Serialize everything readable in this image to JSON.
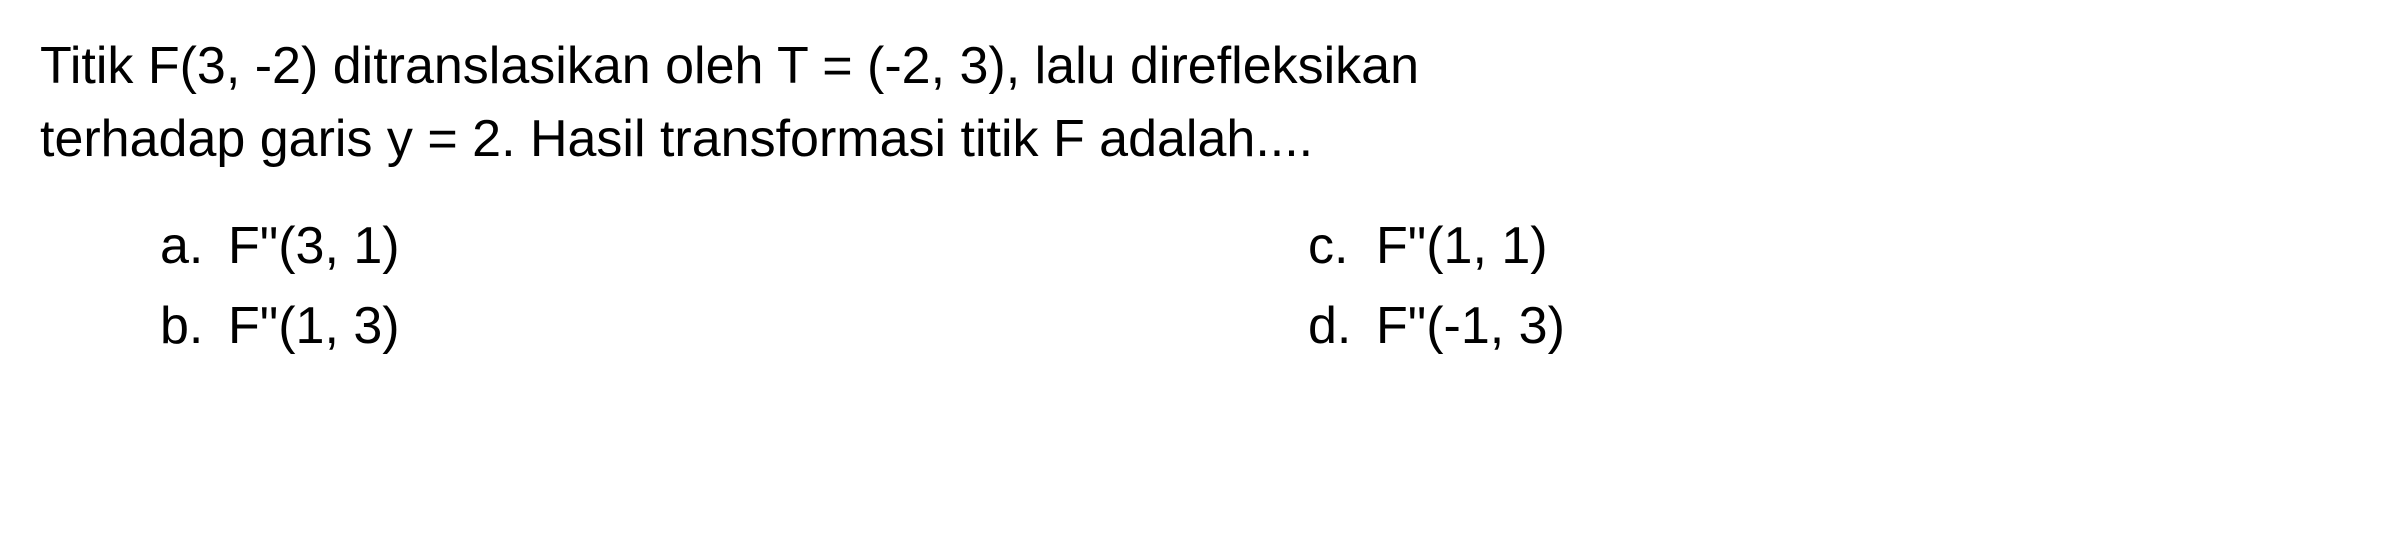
{
  "question": {
    "line1": "Titik F(3, -2) ditranslasikan oleh T = (-2, 3), lalu direfleksikan",
    "line2": "terhadap garis y = 2. Hasil transformasi titik F adalah....",
    "fontsize": 52,
    "color": "#000000"
  },
  "options": {
    "a": {
      "letter": "a.",
      "text": "F\"(3, 1)"
    },
    "b": {
      "letter": "b.",
      "text": "F\"(1, 3)"
    },
    "c": {
      "letter": "c.",
      "text": "F\"(1, 1)"
    },
    "d": {
      "letter": "d.",
      "text": "F\"(-1, 3)"
    }
  },
  "layout": {
    "background_color": "#ffffff",
    "text_color": "#000000",
    "option_fontsize": 52,
    "padding_left": 120
  }
}
